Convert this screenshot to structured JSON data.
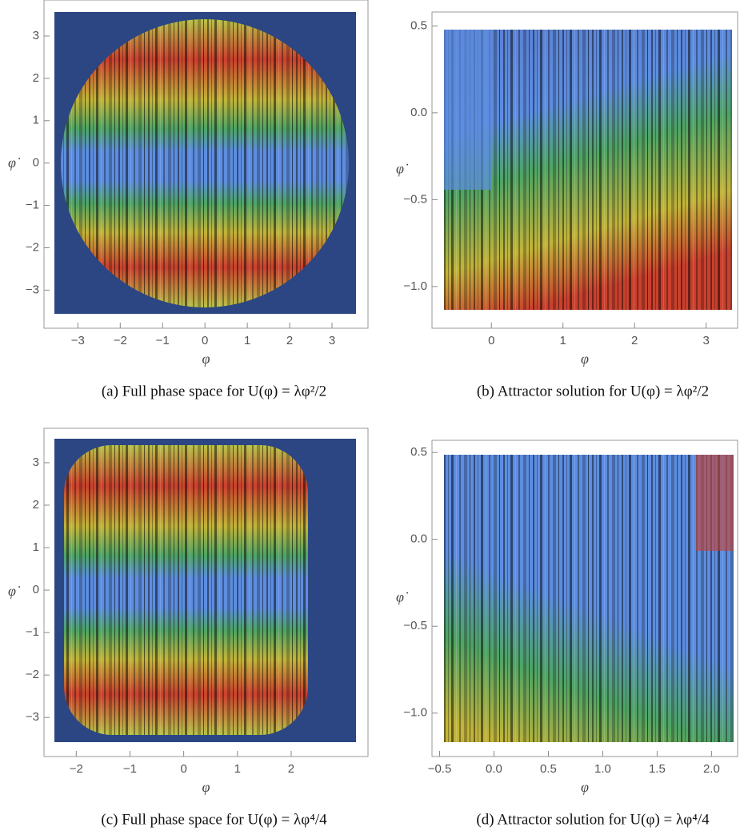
{
  "chart_data": [
    {
      "type": "streamplot",
      "xlabel": "φ",
      "ylabel": "φ̇",
      "caption": "(a) Full phase space for U(φ) = λφ²/2",
      "xlim": [
        -3.8,
        3.85
      ],
      "ylim": [
        -3.9,
        3.85
      ],
      "xticks": [
        {
          "value": -3,
          "label": "−3"
        },
        {
          "value": -2,
          "label": "−2"
        },
        {
          "value": -1,
          "label": "−1"
        },
        0,
        1,
        2,
        3
      ],
      "yticks": [
        {
          "value": -3,
          "label": "−3"
        },
        {
          "value": -2,
          "label": "−2"
        },
        {
          "value": -1,
          "label": "−1"
        },
        0,
        1,
        2,
        3
      ]
    },
    {
      "type": "streamplot",
      "xlabel": "φ",
      "ylabel": "φ̇",
      "caption": "(b) Attractor solution for U(φ) = λφ²/2",
      "xlim": [
        -0.83,
        3.44
      ],
      "ylim": [
        -1.24,
        0.58
      ],
      "xticks": [
        0,
        1,
        2,
        3
      ],
      "yticks": [
        {
          "value": -1,
          "label": "−1.0"
        },
        {
          "value": -0.5,
          "label": "−0.5"
        },
        {
          "value": 0,
          "label": "0.0"
        },
        0.5
      ]
    },
    {
      "type": "streamplot",
      "xlabel": "φ",
      "ylabel": "φ̇",
      "caption": "(c) Full phase space for U(φ) = λφ⁴/4",
      "xlim": [
        -2.6,
        3.43
      ],
      "ylim": [
        -3.92,
        3.81
      ],
      "xticks": [
        {
          "value": -2,
          "label": "−2"
        },
        {
          "value": -1,
          "label": "−1"
        },
        0,
        1,
        2
      ],
      "yticks": [
        {
          "value": -3,
          "label": "−3"
        },
        {
          "value": -2,
          "label": "−2"
        },
        {
          "value": -1,
          "label": "−1"
        },
        0,
        1,
        2,
        3
      ]
    },
    {
      "type": "streamplot",
      "xlabel": "φ",
      "ylabel": "φ̇",
      "caption": "(d) Attractor solution for U(φ) = λφ⁴/4",
      "xlim": [
        -0.57,
        2.24
      ],
      "ylim": [
        -1.25,
        0.57
      ],
      "xticks": [
        {
          "value": -0.5,
          "label": "−0.5"
        },
        {
          "value": 0,
          "label": "0.0"
        },
        0.5,
        {
          "value": 1,
          "label": "1.0"
        },
        1.5,
        {
          "value": 2,
          "label": "2.0"
        }
      ],
      "yticks": [
        {
          "value": -1,
          "label": "−1.0"
        },
        {
          "value": -0.5,
          "label": "−0.5"
        },
        {
          "value": 0,
          "label": "0.0"
        },
        0.5
      ]
    }
  ]
}
